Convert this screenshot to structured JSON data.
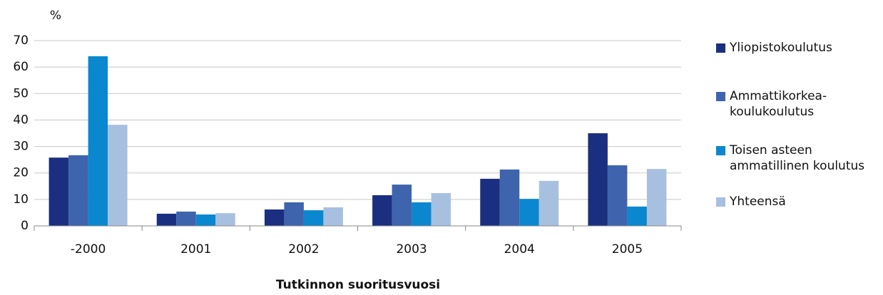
{
  "chart_data": {
    "type": "bar",
    "ylabel": "%",
    "xlabel": "Tutkinnon suoritusvuosi",
    "categories": [
      "-2000",
      "2001",
      "2002",
      "2003",
      "2004",
      "2005"
    ],
    "series": [
      {
        "name": "Yliopistokoulutus",
        "color": "#1b2f80",
        "values": [
          25.8,
          4.6,
          6.2,
          11.6,
          17.8,
          35
        ]
      },
      {
        "name": "Ammattikorkea-\nkoulukoulutus",
        "color": "#3e64ad",
        "values": [
          26.7,
          5.4,
          8.9,
          15.6,
          21.3,
          22.9
        ]
      },
      {
        "name": "Toisen asteen\nammatillinen koulutus",
        "color": "#0a87cf",
        "values": [
          64.1,
          4.3,
          5.9,
          8.9,
          10.2,
          7.3
        ]
      },
      {
        "name": "Yhteensä",
        "color": "#a8c0e0",
        "values": [
          38.2,
          4.8,
          7,
          12.4,
          17,
          21.5
        ]
      }
    ],
    "ylim": [
      0,
      70
    ],
    "yticks": [
      0,
      10,
      20,
      30,
      40,
      50,
      60,
      70
    ],
    "grid": true,
    "legend": "right"
  }
}
